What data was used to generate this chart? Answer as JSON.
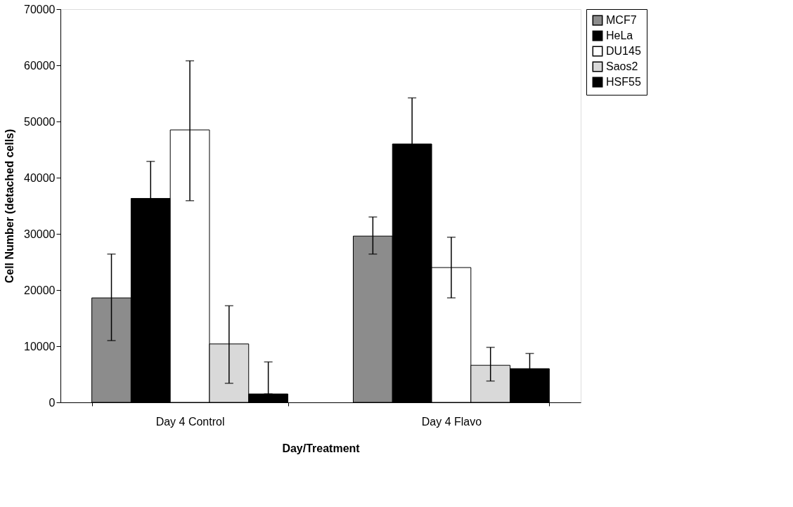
{
  "chart_data": {
    "type": "bar",
    "xlabel": "Day/Treatment",
    "ylabel": "Cell Number (detached cells)",
    "categories": [
      "Day 4 Control",
      "Day 4 Flavo"
    ],
    "series": [
      {
        "name": "MCF7",
        "color": "#8c8c8c",
        "values": [
          18600,
          29600
        ],
        "errors": [
          [
            11000,
            26400
          ],
          [
            26400,
            33000
          ]
        ]
      },
      {
        "name": "HeLa",
        "color": "#000000",
        "values": [
          36300,
          46000
        ],
        "errors": [
          6600,
          8200
        ]
      },
      {
        "name": "DU145",
        "color": "#ffffff",
        "values": [
          48500,
          24000
        ],
        "errors": [
          [
            35900,
            60800
          ],
          [
            18600,
            29400
          ]
        ]
      },
      {
        "name": "Saos2",
        "color": "#d9d9d9",
        "values": [
          10400,
          6600
        ],
        "errors": [
          [
            3400,
            17200
          ],
          [
            3800,
            9800
          ]
        ]
      },
      {
        "name": "HSF55",
        "color": "#000000",
        "values": [
          1500,
          6000
        ],
        "errors": [
          [
            1500,
            7200
          ],
          2700
        ]
      }
    ],
    "ylim": [
      0,
      70000
    ],
    "yticks": [
      0,
      10000,
      20000,
      30000,
      40000,
      50000,
      60000,
      70000
    ],
    "grid": false,
    "legend": "right"
  }
}
